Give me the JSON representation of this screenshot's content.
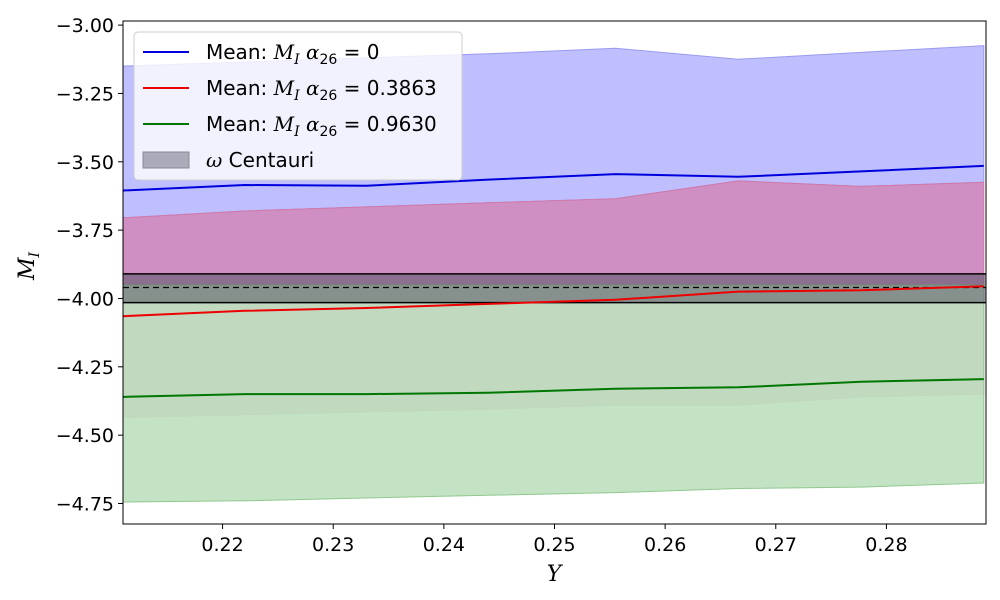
{
  "chart_data": {
    "type": "area",
    "x_axis": {
      "label": "Y",
      "range": [
        0.211,
        0.289
      ],
      "ticks": [
        0.22,
        0.23,
        0.24,
        0.25,
        0.26,
        0.27,
        0.28
      ],
      "tick_labels": [
        "0.22",
        "0.23",
        "0.24",
        "0.25",
        "0.26",
        "0.27",
        "0.28"
      ]
    },
    "y_axis": {
      "label_main": "M",
      "label_sub": "I",
      "range": [
        -4.825,
        -2.985
      ],
      "ticks": [
        -3.0,
        -3.25,
        -3.5,
        -3.75,
        -4.0,
        -4.25,
        -4.5,
        -4.75
      ],
      "tick_labels": [
        "−3.00",
        "−3.25",
        "−3.50",
        "−3.75",
        "−4.00",
        "−4.25",
        "−4.50",
        "−4.75"
      ]
    },
    "grid": false,
    "legend_position": "top-left",
    "x": [
      0.211,
      0.222,
      0.233,
      0.244,
      0.2555,
      0.2666,
      0.2777,
      0.2888
    ],
    "series": [
      {
        "name_prefix": "Mean: ",
        "name_math": "M",
        "name_sub": "I",
        "name_alpha": "α",
        "name_alpha_sub": "26",
        "name_value": "= 0",
        "color": "#0000dd",
        "fill": "#bfbfff",
        "fill_edge": "#9a9af0",
        "mean": [
          -3.605,
          -3.585,
          -3.588,
          -3.565,
          -3.545,
          -3.555,
          -3.535,
          -3.515
        ],
        "upper": [
          -3.15,
          -3.135,
          -3.12,
          -3.105,
          -3.085,
          -3.125,
          -3.1,
          -3.075
        ],
        "lower": [
          -3.705,
          -3.68,
          -3.665,
          -3.65,
          -3.635,
          -3.57,
          -3.59,
          -3.575
        ]
      },
      {
        "name_prefix": "Mean: ",
        "name_math": "M",
        "name_sub": "I",
        "name_alpha": "α",
        "name_alpha_sub": "26",
        "name_value": "= 0.3863",
        "color": "#ee0000",
        "fill": "#cf8fc2",
        "fill_edge": "#d078a8",
        "mean": [
          -4.065,
          -4.045,
          -4.035,
          -4.02,
          -4.005,
          -3.975,
          -3.97,
          -3.955
        ],
        "upper": [
          -3.705,
          -3.68,
          -3.665,
          -3.65,
          -3.635,
          -3.57,
          -3.59,
          -3.575
        ],
        "lower": [
          -4.435,
          -4.425,
          -4.415,
          -4.405,
          -4.39,
          -4.39,
          -4.36,
          -4.35
        ]
      },
      {
        "name_prefix": "Mean: ",
        "name_math": "M",
        "name_sub": "I",
        "name_alpha": "α",
        "name_alpha_sub": "26",
        "name_value": "= 0.9630",
        "color": "#007700",
        "fill": "#bfe0bf",
        "fill_edge": "#90c890",
        "mean": [
          -4.36,
          -4.35,
          -4.35,
          -4.345,
          -4.33,
          -4.325,
          -4.305,
          -4.295
        ],
        "upper": [
          -3.95,
          -3.95,
          -3.95,
          -3.95,
          -3.95,
          -3.95,
          -3.95,
          -3.95
        ],
        "lower": [
          -4.745,
          -4.74,
          -4.73,
          -4.72,
          -4.71,
          -4.695,
          -4.69,
          -4.675
        ]
      }
    ],
    "reference": {
      "name_greek": "ω",
      "name_text": " Centauri",
      "center": -3.96,
      "upper": -3.91,
      "lower": -4.015,
      "fill": "#555566",
      "line_color": "#000000"
    }
  }
}
